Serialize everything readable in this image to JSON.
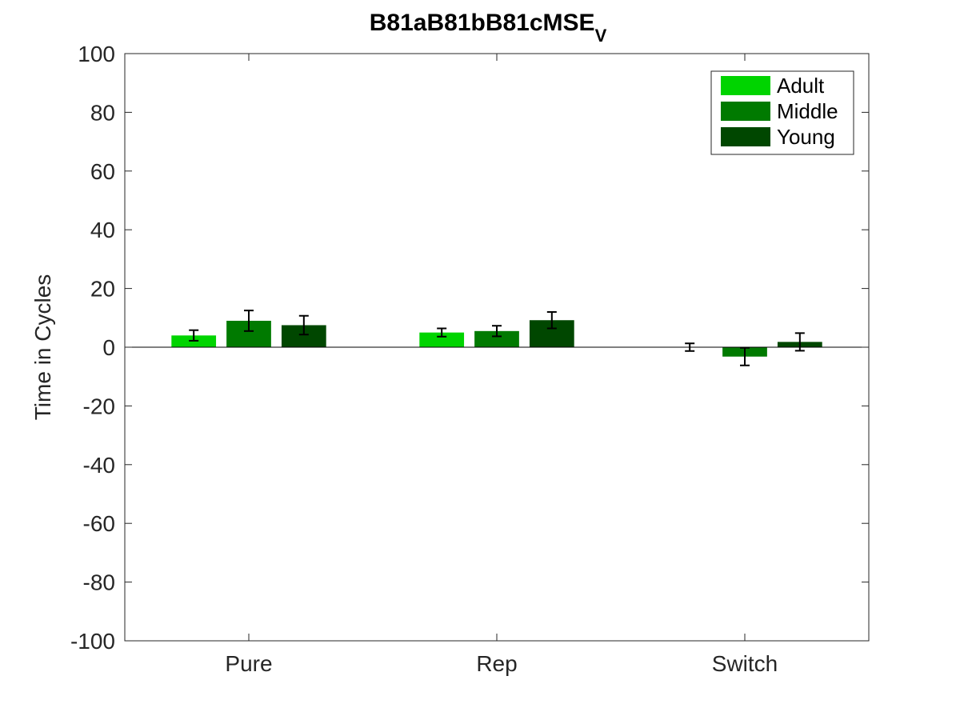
{
  "chart_data": {
    "type": "bar",
    "title": "B81aB81bB81cMSE",
    "title_subscript": "V",
    "xlabel": "",
    "ylabel": "Time in Cycles",
    "ylim": [
      -100,
      100
    ],
    "yticks": [
      -100,
      -80,
      -60,
      -40,
      -20,
      0,
      20,
      40,
      60,
      80,
      100
    ],
    "categories": [
      "Pure",
      "Rep",
      "Switch"
    ],
    "legend_position": "top-right",
    "grid": false,
    "series": [
      {
        "name": "Adult",
        "color": "#00d400",
        "values": [
          4.0,
          5.0,
          0.0
        ],
        "errors": [
          1.8,
          1.4,
          1.3
        ]
      },
      {
        "name": "Middle",
        "color": "#007a00",
        "values": [
          9.0,
          5.5,
          -3.2
        ],
        "errors": [
          3.5,
          1.8,
          3.0
        ]
      },
      {
        "name": "Young",
        "color": "#004700",
        "values": [
          7.5,
          9.2,
          1.8
        ],
        "errors": [
          3.2,
          2.8,
          3.0
        ]
      }
    ]
  }
}
